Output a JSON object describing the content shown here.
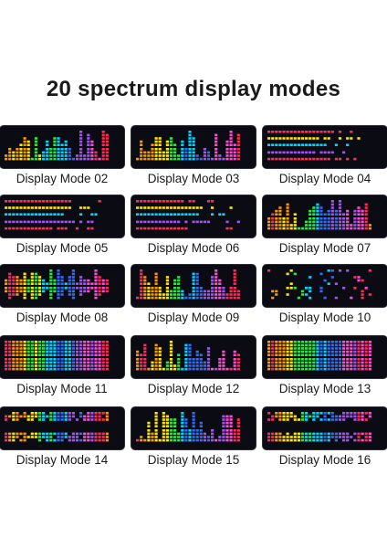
{
  "title": "20 spectrum display modes",
  "panel_colors": [
    "#ff2d55",
    "#ff9500",
    "#ffe600",
    "#34e04a",
    "#00d4ff",
    "#2f6bff",
    "#a64dff",
    "#ff4dd2"
  ],
  "modes": [
    {
      "label": "Display Mode 02",
      "style": "bars"
    },
    {
      "label": "Display Mode 03",
      "style": "bars"
    },
    {
      "label": "Display Mode 04",
      "style": "rows"
    },
    {
      "label": "Display Mode 05",
      "style": "rows"
    },
    {
      "label": "Display Mode 06",
      "style": "rows"
    },
    {
      "label": "Display Mode 07",
      "style": "bars"
    },
    {
      "label": "Display Mode 08",
      "style": "mirror"
    },
    {
      "label": "Display Mode 09",
      "style": "bars"
    },
    {
      "label": "Display Mode 10",
      "style": "dots"
    },
    {
      "label": "Display Mode 11",
      "style": "full"
    },
    {
      "label": "Display Mode 12",
      "style": "bars"
    },
    {
      "label": "Display Mode 13",
      "style": "full"
    },
    {
      "label": "Display Mode 14",
      "style": "split"
    },
    {
      "label": "Display Mode 15",
      "style": "bars"
    },
    {
      "label": "Display Mode 16",
      "style": "split"
    }
  ]
}
